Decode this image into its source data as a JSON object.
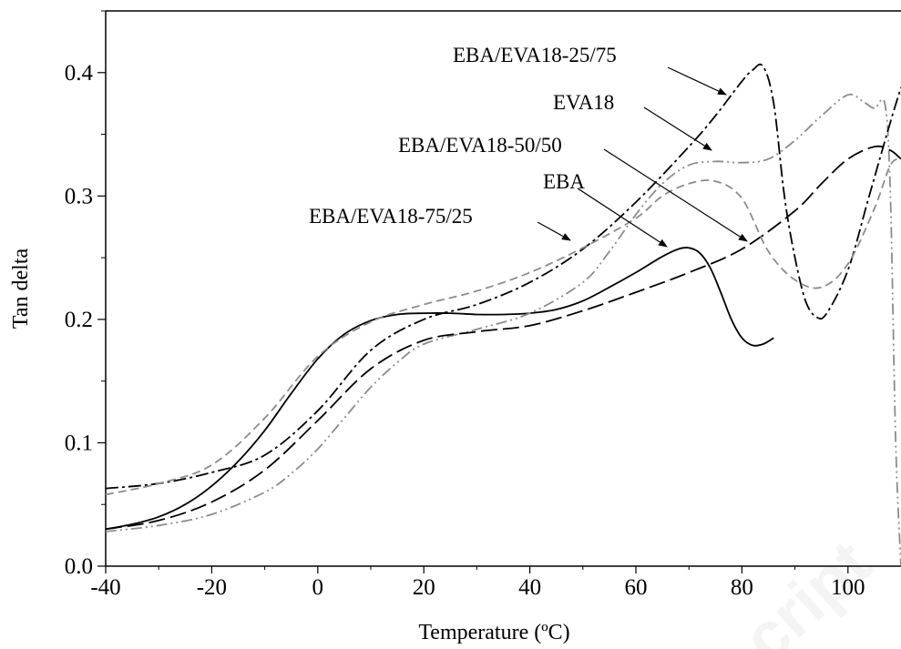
{
  "chart_data": {
    "type": "line",
    "title": "",
    "xlabel": "Temperature (ºC)",
    "ylabel": "Tan delta",
    "xlim": [
      -40,
      110
    ],
    "ylim": [
      0,
      0.45
    ],
    "xticks": [
      -40,
      -20,
      0,
      20,
      40,
      60,
      80,
      100
    ],
    "yticks": [
      0.0,
      0.1,
      0.2,
      0.3,
      0.4
    ],
    "xtick_labels": [
      "-40",
      "-20",
      "0",
      "20",
      "40",
      "60",
      "80",
      "100"
    ],
    "ytick_labels": [
      "0.0",
      "0.1",
      "0.2",
      "0.3",
      "0.4"
    ],
    "grid": false,
    "legend": "none",
    "series": [
      {
        "name": "EBA",
        "color": "#000000",
        "dash": "solid",
        "x": [
          -40,
          -35,
          -30,
          -25,
          -20,
          -15,
          -10,
          -5,
          0,
          5,
          10,
          15,
          20,
          25,
          30,
          35,
          40,
          45,
          50,
          55,
          60,
          65,
          68,
          70,
          72,
          74,
          76,
          78,
          80,
          82,
          84,
          86
        ],
        "y": [
          0.03,
          0.034,
          0.04,
          0.05,
          0.065,
          0.085,
          0.11,
          0.14,
          0.168,
          0.188,
          0.199,
          0.204,
          0.205,
          0.205,
          0.204,
          0.204,
          0.205,
          0.208,
          0.215,
          0.226,
          0.238,
          0.251,
          0.257,
          0.258,
          0.254,
          0.242,
          0.222,
          0.2,
          0.185,
          0.179,
          0.18,
          0.185
        ]
      },
      {
        "name": "EVA18",
        "color": "#8c8c8c",
        "dash": "dash-dot-dot",
        "x": [
          -40,
          -30,
          -20,
          -10,
          -5,
          0,
          5,
          10,
          15,
          20,
          30,
          40,
          50,
          55,
          60,
          65,
          70,
          75,
          80,
          85,
          90,
          95,
          100,
          103,
          105,
          107,
          108,
          109,
          110
        ],
        "y": [
          0.028,
          0.033,
          0.042,
          0.06,
          0.075,
          0.095,
          0.12,
          0.145,
          0.165,
          0.18,
          0.192,
          0.205,
          0.23,
          0.255,
          0.285,
          0.31,
          0.325,
          0.328,
          0.327,
          0.33,
          0.345,
          0.365,
          0.382,
          0.376,
          0.371,
          0.374,
          0.3,
          0.1,
          0.0
        ]
      },
      {
        "name": "EBA/EVA18-25/75",
        "color": "#000000",
        "dash": "dash-dot",
        "x": [
          -40,
          -30,
          -20,
          -10,
          0,
          10,
          20,
          30,
          40,
          50,
          60,
          70,
          75,
          80,
          82,
          84,
          86,
          88,
          90,
          92,
          94,
          96,
          100,
          104,
          108,
          110
        ],
        "y": [
          0.063,
          0.067,
          0.076,
          0.09,
          0.126,
          0.175,
          0.2,
          0.212,
          0.23,
          0.257,
          0.295,
          0.34,
          0.365,
          0.393,
          0.402,
          0.405,
          0.375,
          0.3,
          0.25,
          0.215,
          0.202,
          0.205,
          0.24,
          0.3,
          0.36,
          0.388
        ]
      },
      {
        "name": "EBA/EVA18-50/50",
        "color": "#000000",
        "dash": "long-dash",
        "x": [
          -40,
          -30,
          -20,
          -10,
          0,
          10,
          20,
          30,
          40,
          50,
          60,
          70,
          80,
          90,
          95,
          100,
          105,
          108,
          110
        ],
        "y": [
          0.03,
          0.037,
          0.052,
          0.078,
          0.118,
          0.16,
          0.183,
          0.19,
          0.195,
          0.207,
          0.222,
          0.238,
          0.257,
          0.288,
          0.31,
          0.33,
          0.34,
          0.337,
          0.33
        ]
      },
      {
        "name": "EBA/EVA18-75/25",
        "color": "#8c8c8c",
        "dash": "short-dash",
        "x": [
          -40,
          -30,
          -20,
          -10,
          0,
          10,
          20,
          30,
          40,
          50,
          60,
          65,
          70,
          75,
          80,
          85,
          90,
          95,
          100,
          105,
          108,
          110
        ],
        "y": [
          0.058,
          0.067,
          0.082,
          0.12,
          0.17,
          0.198,
          0.212,
          0.223,
          0.238,
          0.258,
          0.282,
          0.3,
          0.31,
          0.312,
          0.298,
          0.255,
          0.232,
          0.226,
          0.245,
          0.29,
          0.325,
          0.33
        ]
      }
    ],
    "annotations": [
      {
        "text": "EBA/EVA18-25/75",
        "series": "EBA/EVA18-25/75"
      },
      {
        "text": "EVA18",
        "series": "EVA18"
      },
      {
        "text": "EBA/EVA18-50/50",
        "series": "EBA/EVA18-50/50"
      },
      {
        "text": "EBA",
        "series": "EBA"
      },
      {
        "text": "EBA/EVA18-75/25",
        "series": "EBA/EVA18-75/25"
      }
    ]
  },
  "watermark": "cript"
}
